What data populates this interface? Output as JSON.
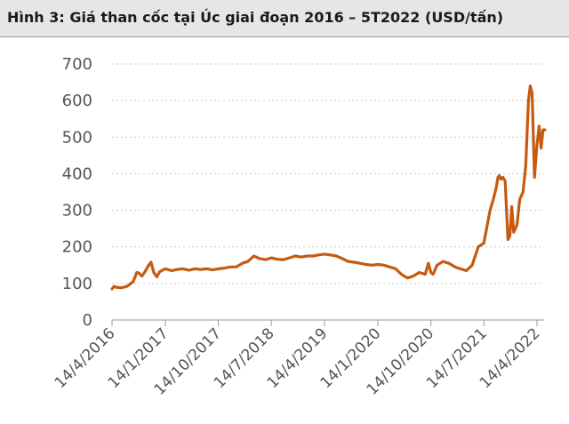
{
  "chart_data": {
    "type": "line",
    "title": "Hình 3: Giá than cốc tại Úc giai đoạn 2016 – 5T2022 (USD/tấn)",
    "xlabel": "",
    "ylabel": "",
    "ylim": [
      0,
      700
    ],
    "y_ticks": [
      0,
      100,
      200,
      300,
      400,
      500,
      600,
      700
    ],
    "x_range": [
      "2016-04-14",
      "2022-05-31"
    ],
    "x_tick_dates": [
      "2016-04-14",
      "2017-01-14",
      "2017-10-14",
      "2018-07-14",
      "2019-04-14",
      "2020-01-14",
      "2020-10-14",
      "2021-07-14",
      "2022-04-14"
    ],
    "x_tick_labels": [
      "14/4/2016",
      "14/1/2017",
      "14/10/2017",
      "14/7/2018",
      "14/4/2019",
      "14/1/2020",
      "14/10/2020",
      "14/7/2021",
      "14/4/2022"
    ],
    "grid": "horizontal-dotted",
    "line_color": "#c55a11",
    "series": [
      {
        "x": [
          "2016-04-14",
          "2016-04-25",
          "2016-05-01",
          "2016-06-01",
          "2016-07-01",
          "2016-08-01",
          "2016-08-20",
          "2016-09-01",
          "2016-09-15",
          "2016-10-01",
          "2016-10-20",
          "2016-11-01",
          "2016-11-15",
          "2016-12-01",
          "2016-12-15",
          "2017-01-14",
          "2017-02-15",
          "2017-03-15",
          "2017-04-15",
          "2017-05-15",
          "2017-06-15",
          "2017-07-15",
          "2017-08-15",
          "2017-09-15",
          "2017-10-14",
          "2017-11-15",
          "2017-12-15",
          "2018-01-15",
          "2018-02-15",
          "2018-03-15",
          "2018-04-15",
          "2018-05-15",
          "2018-06-15",
          "2018-07-14",
          "2018-08-15",
          "2018-09-15",
          "2018-10-15",
          "2018-11-15",
          "2018-12-15",
          "2019-01-15",
          "2019-02-15",
          "2019-03-15",
          "2019-04-14",
          "2019-05-15",
          "2019-06-15",
          "2019-07-15",
          "2019-08-15",
          "2019-09-15",
          "2019-10-15",
          "2019-11-15",
          "2019-12-15",
          "2020-01-14",
          "2020-02-15",
          "2020-03-15",
          "2020-04-15",
          "2020-05-15",
          "2020-06-15",
          "2020-07-15",
          "2020-08-15",
          "2020-09-15",
          "2020-10-01",
          "2020-10-14",
          "2020-10-25",
          "2020-11-15",
          "2020-12-15",
          "2021-01-15",
          "2021-02-15",
          "2021-03-15",
          "2021-04-15",
          "2021-05-15",
          "2021-06-15",
          "2021-07-14",
          "2021-08-01",
          "2021-08-15",
          "2021-09-01",
          "2021-09-15",
          "2021-09-25",
          "2021-10-01",
          "2021-10-10",
          "2021-10-20",
          "2021-11-01",
          "2021-11-15",
          "2021-11-25",
          "2021-12-05",
          "2021-12-15",
          "2022-01-01",
          "2022-01-15",
          "2022-02-01",
          "2022-02-15",
          "2022-03-01",
          "2022-03-10",
          "2022-03-20",
          "2022-04-01",
          "2022-04-14",
          "2022-04-25",
          "2022-05-05",
          "2022-05-15",
          "2022-05-25"
        ],
        "values": [
          85,
          92,
          90,
          88,
          92,
          105,
          130,
          128,
          120,
          132,
          150,
          158,
          130,
          118,
          132,
          140,
          135,
          138,
          140,
          136,
          140,
          138,
          140,
          137,
          140,
          142,
          145,
          145,
          155,
          160,
          175,
          168,
          165,
          170,
          166,
          165,
          170,
          175,
          172,
          175,
          175,
          178,
          180,
          178,
          175,
          168,
          160,
          158,
          155,
          152,
          150,
          152,
          150,
          145,
          140,
          125,
          115,
          120,
          130,
          125,
          155,
          130,
          125,
          150,
          160,
          155,
          145,
          140,
          135,
          150,
          200,
          210,
          260,
          300,
          330,
          360,
          390,
          395,
          385,
          390,
          380,
          220,
          230,
          310,
          240,
          260,
          330,
          350,
          420,
          600,
          640,
          620,
          390,
          480,
          530,
          470,
          520,
          520
        ]
      }
    ]
  }
}
